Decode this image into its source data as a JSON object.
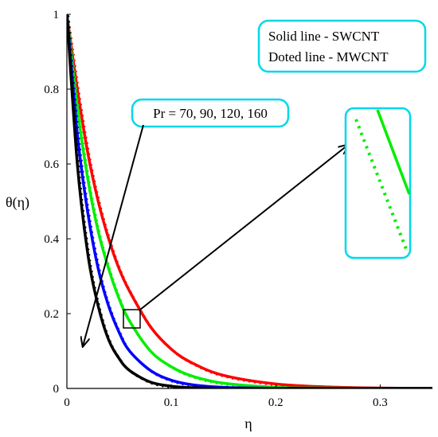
{
  "chart_data": {
    "type": "line",
    "title": "",
    "xlabel": "η",
    "ylabel": "θ(η)",
    "xlim": [
      0,
      0.35
    ],
    "ylim": [
      0,
      1
    ],
    "x_ticks": [
      "0",
      "0.1",
      "0.2",
      "0.3"
    ],
    "x_tick_values": [
      0,
      0.1,
      0.2,
      0.3
    ],
    "y_ticks": [
      "0",
      "0.2",
      "0.4",
      "0.6",
      "0.8",
      "1"
    ],
    "y_tick_values": [
      0,
      0.2,
      0.4,
      0.6,
      0.8,
      1
    ],
    "x": [
      0,
      0.01,
      0.02,
      0.03,
      0.04,
      0.05,
      0.06,
      0.08,
      0.1,
      0.12,
      0.15,
      0.2,
      0.25,
      0.3,
      0.35
    ],
    "series": [
      {
        "color": "#ff0000",
        "pr": 70,
        "values": [
          1.0,
          0.8,
          0.63,
          0.5,
          0.4,
          0.32,
          0.26,
          0.165,
          0.105,
          0.068,
          0.035,
          0.012,
          0.004,
          0.001,
          0.0004
        ]
      },
      {
        "color": "#00ee00",
        "pr": 90,
        "values": [
          1.0,
          0.75,
          0.56,
          0.42,
          0.32,
          0.24,
          0.18,
          0.1,
          0.058,
          0.033,
          0.014,
          0.003,
          0.001,
          0.0002,
          0.0
        ]
      },
      {
        "color": "#0000ff",
        "pr": 120,
        "values": [
          1.0,
          0.68,
          0.47,
          0.32,
          0.22,
          0.15,
          0.1,
          0.048,
          0.022,
          0.01,
          0.003,
          0.0004,
          0.0,
          0.0,
          0.0
        ]
      },
      {
        "color": "#000000",
        "pr": 160,
        "values": [
          1.0,
          0.6,
          0.36,
          0.22,
          0.13,
          0.08,
          0.048,
          0.017,
          0.006,
          0.002,
          0.0004,
          0.0,
          0.0,
          0.0,
          0.0
        ]
      }
    ],
    "annotations": {
      "pr_label": "Pr = 70, 90, 120, 160",
      "legend_line1": "Solid line - SWCNT",
      "legend_line2": "Doted line - MWCNT"
    },
    "grid": false,
    "legend_placement": "top-right"
  },
  "colors": {
    "box_border": "#00d8e8"
  }
}
